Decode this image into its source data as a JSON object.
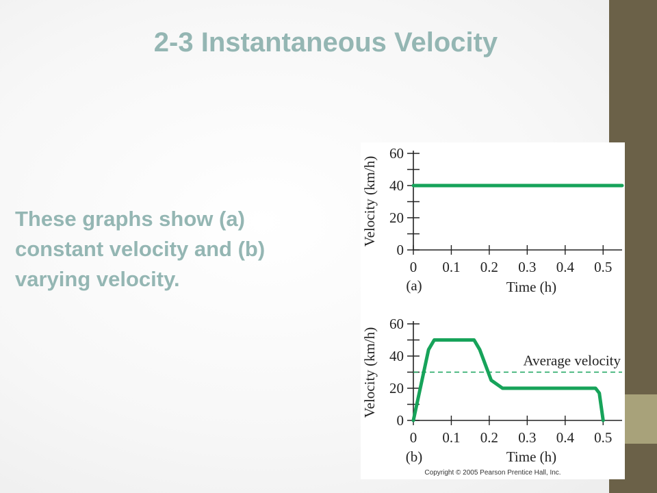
{
  "slide": {
    "title": "2-3 Instantaneous Velocity",
    "body": "These graphs show (a) constant velocity and (b) varying velocity."
  },
  "colors": {
    "title": "#94b6b3",
    "series": "#17a35a",
    "sidebar": "#6b6148",
    "sidebar_accent": "#a8a27a"
  },
  "copyright": "Copyright © 2005 Pearson Prentice Hall, Inc.",
  "chart_data": [
    {
      "type": "line",
      "panel_label": "(a)",
      "xlabel": "Time (h)",
      "ylabel": "Velocity (km/h)",
      "xlim": [
        0,
        0.55
      ],
      "ylim": [
        0,
        60
      ],
      "x_ticks": [
        0,
        0.1,
        0.2,
        0.3,
        0.4,
        0.5
      ],
      "y_ticks": [
        0,
        20,
        40,
        60
      ],
      "series": [
        {
          "x": [
            0,
            0.55
          ],
          "y": [
            40,
            40
          ]
        }
      ]
    },
    {
      "type": "line",
      "panel_label": "(b)",
      "xlabel": "Time (h)",
      "ylabel": "Velocity (km/h)",
      "xlim": [
        0,
        0.55
      ],
      "ylim": [
        0,
        60
      ],
      "x_ticks": [
        0,
        0.1,
        0.2,
        0.3,
        0.4,
        0.5
      ],
      "y_ticks": [
        0,
        20,
        40,
        60
      ],
      "series": [
        {
          "x": [
            0,
            0.04,
            0.055,
            0.16,
            0.175,
            0.205,
            0.235,
            0.48,
            0.49,
            0.5
          ],
          "y": [
            0,
            44,
            50,
            50,
            44,
            25,
            20,
            20,
            17,
            0
          ]
        }
      ],
      "reference_line": {
        "label": "Average velocity",
        "y": 30
      }
    }
  ]
}
